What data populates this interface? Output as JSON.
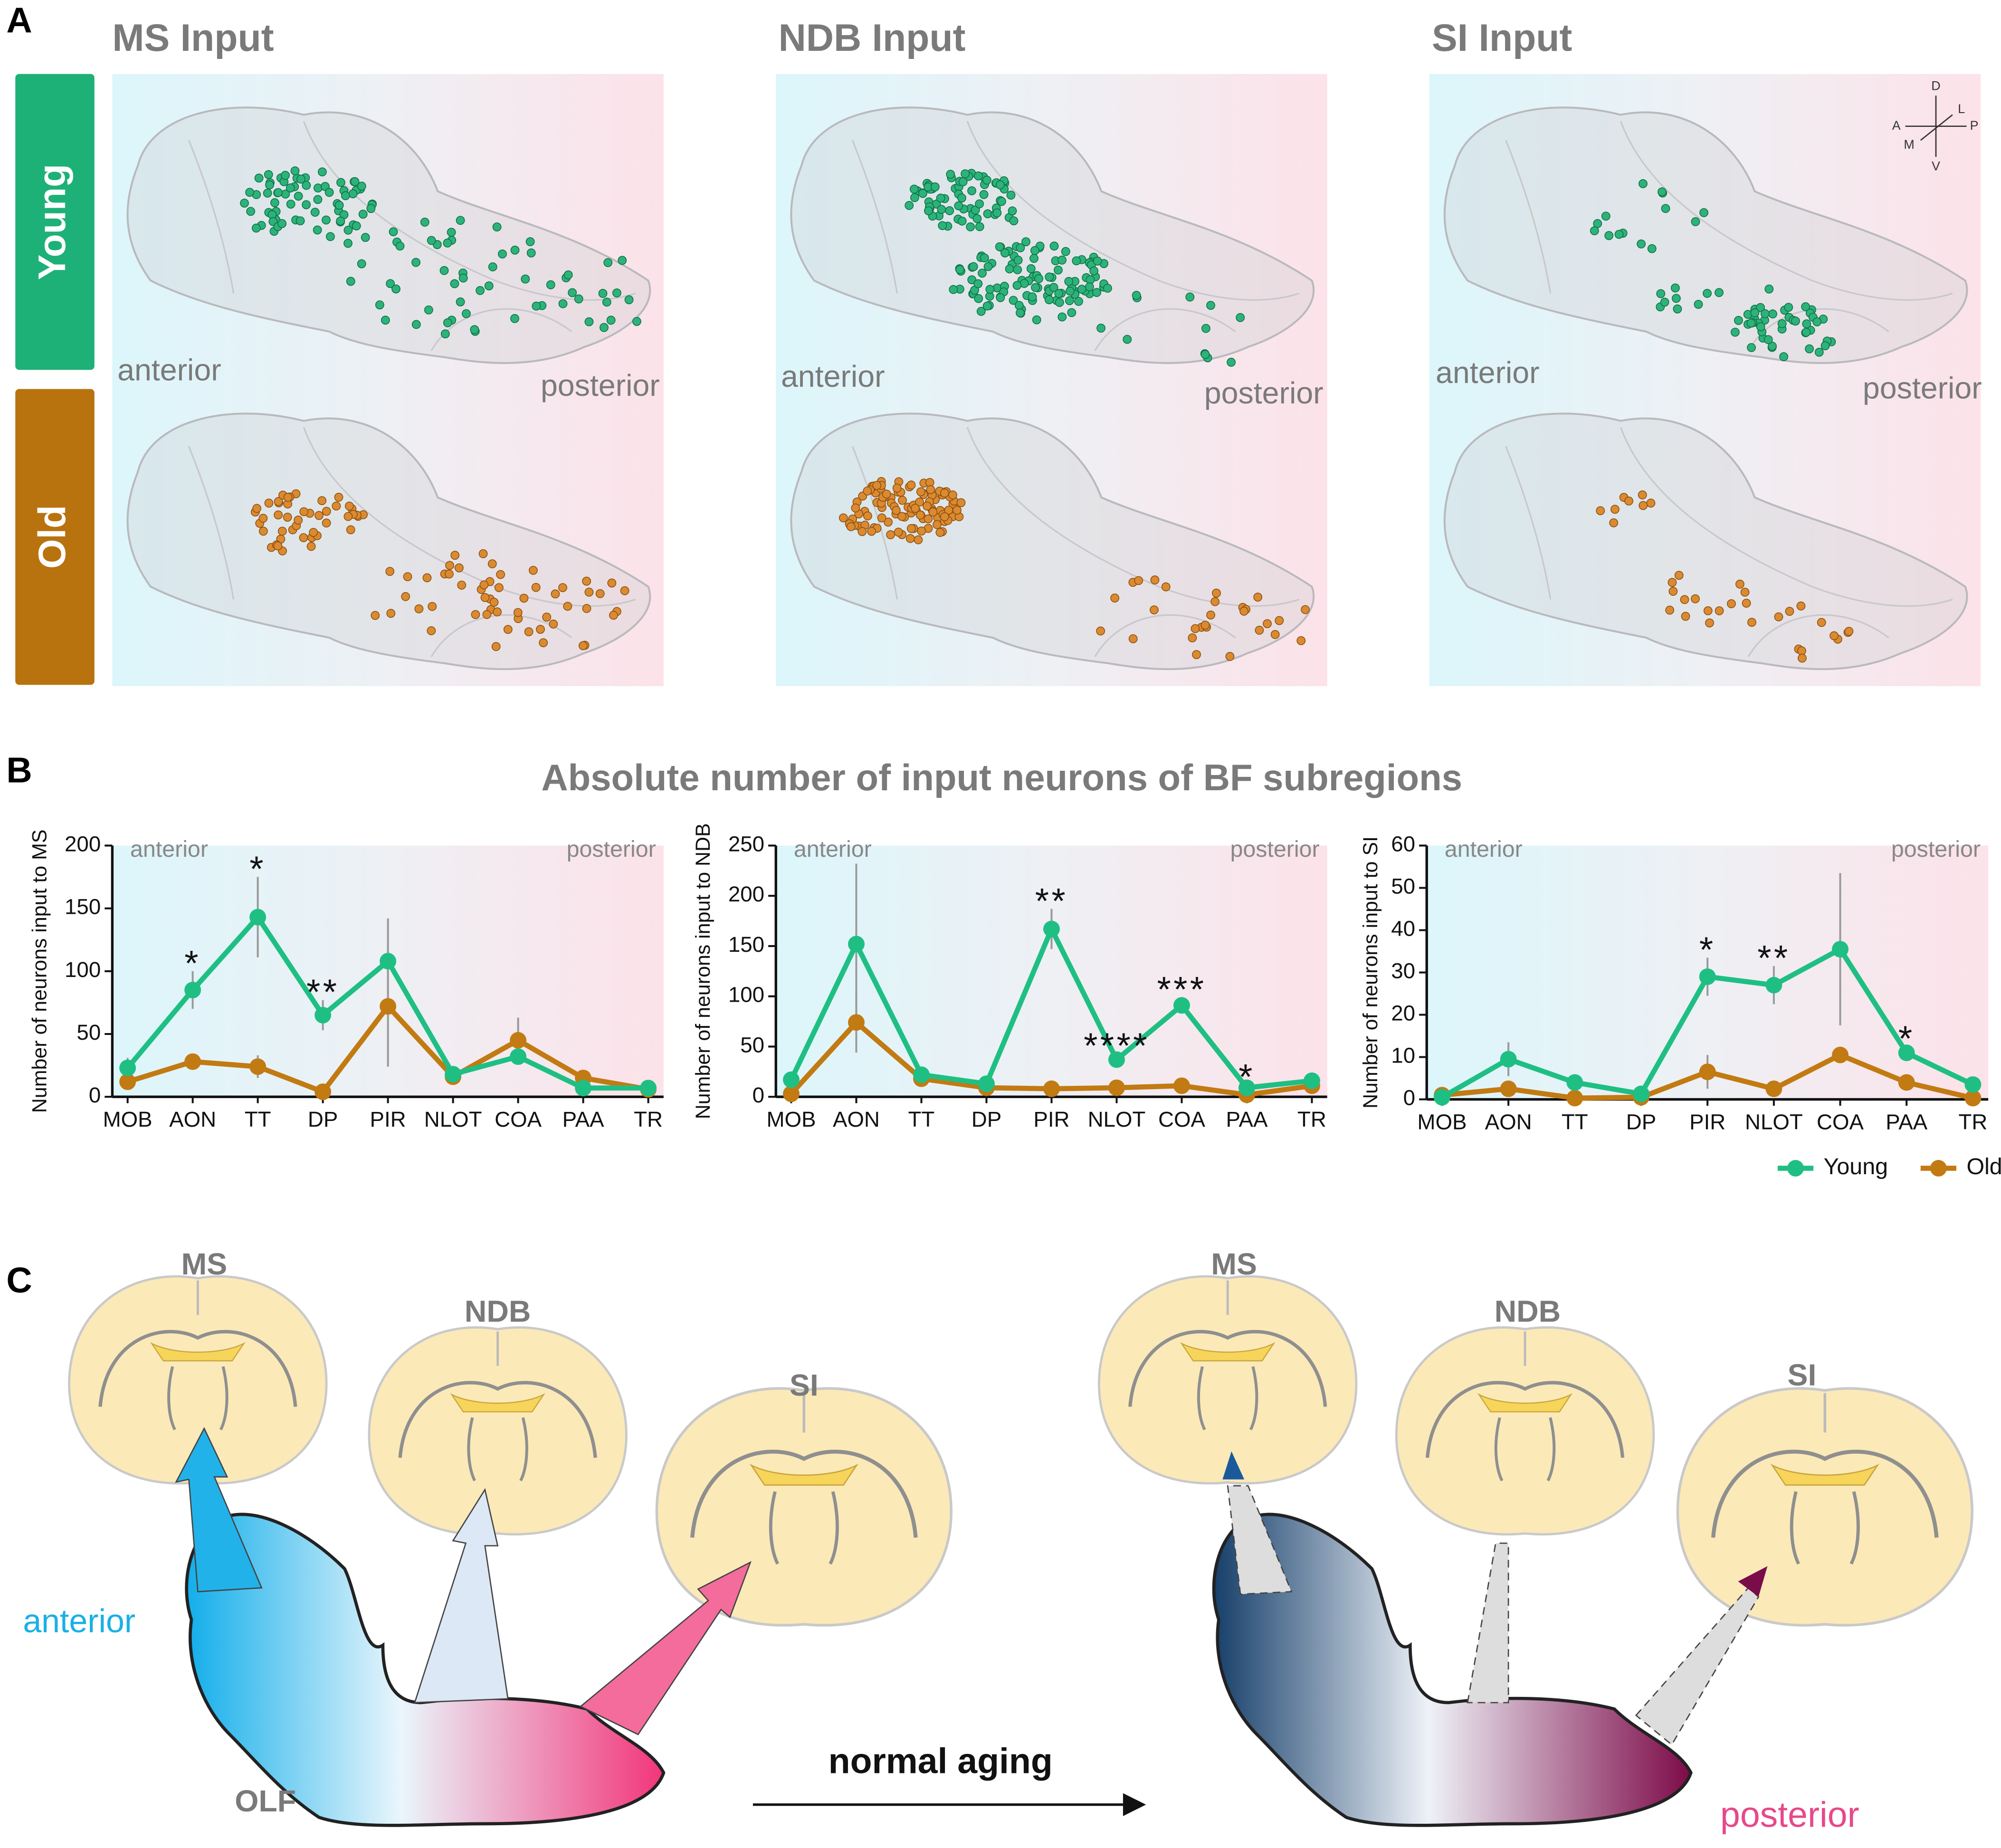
{
  "panels": {
    "a": "A",
    "b": "B",
    "c": "C"
  },
  "panel_a": {
    "columns": [
      "MS Input",
      "NDB Input",
      "SI Input"
    ],
    "rows": [
      "Young",
      "Old"
    ],
    "anterior": "anterior",
    "posterior": "posterior",
    "orientation": [
      "D",
      "L",
      "A",
      "P",
      "M",
      "V"
    ]
  },
  "panel_b_title": "Absolute number of input neurons of BF subregions",
  "chart_data": [
    {
      "type": "line",
      "y_label": "Number of neurons input to MS",
      "annotations": [
        "anterior",
        "posterior"
      ],
      "categories": [
        "MOB",
        "AON",
        "TT",
        "DP",
        "PIR",
        "NLOT",
        "COA",
        "PAA",
        "TR"
      ],
      "ylim": [
        0,
        200
      ],
      "yticks": [
        0,
        50,
        100,
        150,
        200
      ],
      "series": [
        {
          "name": "Young",
          "color": "#1fbf84",
          "values": [
            23,
            85,
            143,
            65,
            108,
            18,
            32,
            7,
            7
          ],
          "errors": [
            8,
            15,
            32,
            12,
            34,
            3,
            6,
            2,
            2
          ]
        },
        {
          "name": "Old",
          "color": "#c27a12",
          "values": [
            12,
            28,
            24,
            4,
            72,
            16,
            45,
            15,
            6
          ],
          "errors": [
            3,
            6,
            9,
            2,
            48,
            3,
            18,
            4,
            2
          ]
        }
      ],
      "significance": [
        null,
        "*",
        "*",
        "**",
        null,
        null,
        null,
        null,
        null
      ],
      "legend": false
    },
    {
      "type": "line",
      "y_label": "Number of neurons input to NDB",
      "annotations": [
        "anterior",
        "posterior"
      ],
      "categories": [
        "MOB",
        "AON",
        "TT",
        "DP",
        "PIR",
        "NLOT",
        "COA",
        "PAA",
        "TR"
      ],
      "ylim": [
        0,
        250
      ],
      "yticks": [
        0,
        50,
        100,
        150,
        200,
        250
      ],
      "series": [
        {
          "name": "Young",
          "color": "#1fbf84",
          "values": [
            17,
            152,
            22,
            13,
            167,
            37,
            91,
            9,
            16
          ],
          "errors": [
            3,
            80,
            4,
            3,
            20,
            6,
            8,
            3,
            4
          ]
        },
        {
          "name": "Old",
          "color": "#c27a12",
          "values": [
            3,
            74,
            18,
            9,
            8,
            9,
            11,
            2,
            11
          ],
          "errors": [
            1,
            30,
            4,
            2,
            2,
            2,
            3,
            1,
            3
          ]
        }
      ],
      "significance": [
        null,
        null,
        null,
        null,
        "**",
        "****",
        "***",
        "*",
        null
      ],
      "legend": false
    },
    {
      "type": "line",
      "y_label": "Number of neurons input to SI",
      "annotations": [
        "anterior",
        "posterior"
      ],
      "categories": [
        "MOB",
        "AON",
        "TT",
        "DP",
        "PIR",
        "NLOT",
        "COA",
        "PAA",
        "TR"
      ],
      "ylim": [
        0,
        60
      ],
      "yticks": [
        0,
        10,
        20,
        30,
        40,
        50,
        60
      ],
      "series": [
        {
          "name": "Young",
          "color": "#1fbf84",
          "values": [
            0.5,
            9.5,
            4,
            1.3,
            29,
            27,
            35.5,
            11,
            3.5
          ],
          "errors": [
            0.3,
            4,
            0.8,
            0.5,
            4.5,
            4.5,
            18,
            1.5,
            1
          ]
        },
        {
          "name": "Old",
          "color": "#c27a12",
          "values": [
            1,
            2.5,
            0.3,
            0.5,
            6.5,
            2.5,
            10.5,
            4,
            0.3
          ],
          "errors": [
            0.3,
            1.5,
            0.2,
            0.2,
            4,
            0.8,
            1.5,
            1,
            0.2
          ]
        }
      ],
      "significance": [
        null,
        null,
        null,
        null,
        "*",
        "**",
        null,
        "*",
        null
      ],
      "legend": "bottom-right"
    }
  ],
  "panel_c": {
    "left_regions": [
      "MS",
      "NDB",
      "SI"
    ],
    "right_regions": [
      "MS",
      "NDB",
      "SI"
    ],
    "anterior": "anterior",
    "olf": "OLF",
    "transition": "normal aging",
    "posterior": "posterior"
  }
}
